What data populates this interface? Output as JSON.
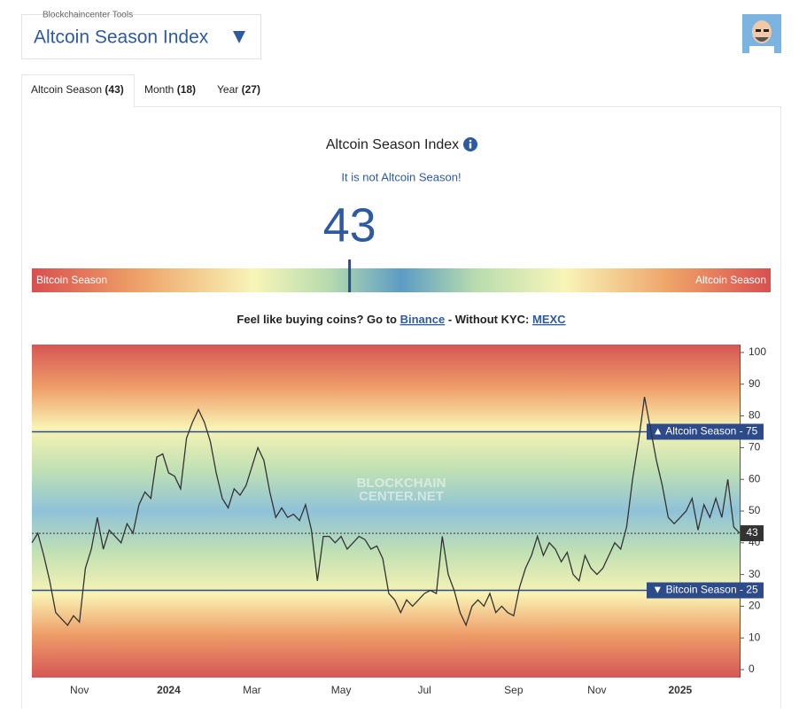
{
  "header": {
    "tools_label": "Blockchaincenter Tools",
    "title": "Altcoin Season Index"
  },
  "tabs": [
    {
      "label": "Altcoin Season",
      "count": "(43)"
    },
    {
      "label": "Month",
      "count": "(18)"
    },
    {
      "label": "Year",
      "count": "(27)"
    }
  ],
  "gauge": {
    "title": "Altcoin Season Index",
    "status": "It is not Altcoin Season!",
    "value": 43,
    "left_label": "Bitcoin Season",
    "right_label": "Altcoin Season"
  },
  "promo": {
    "lead": "Feel like buying coins? Go to",
    "link1": "Binance",
    "middle": "- Without KYC:",
    "link2": "MEXC"
  },
  "line_chart": {
    "type": "line",
    "watermark": [
      "BLOCKCHAIN",
      "CENTER.NET"
    ],
    "color": "#333333",
    "categories": [
      null,
      null,
      null,
      null,
      null,
      null,
      null,
      null,
      "Nov",
      null,
      null,
      null,
      null,
      null,
      null,
      null,
      null,
      null,
      null,
      null,
      null,
      null,
      null,
      "2024",
      null,
      null,
      null,
      null,
      null,
      null,
      null,
      null,
      null,
      null,
      null,
      null,
      null,
      "Mar",
      null,
      null,
      null,
      null,
      null,
      null,
      null,
      null,
      null,
      null,
      null,
      null,
      null,
      null,
      "May",
      null,
      null,
      null,
      null,
      null,
      null,
      null,
      null,
      null,
      null,
      null,
      null,
      null,
      "Jul",
      null,
      null,
      null,
      null,
      null,
      null,
      null,
      null,
      null,
      null,
      null,
      null,
      null,
      null,
      "Sep",
      null,
      null,
      null,
      null,
      null,
      null,
      null,
      null,
      null,
      null,
      null,
      null,
      null,
      "Nov",
      null,
      null,
      null,
      null,
      null,
      null,
      null,
      null,
      null,
      null,
      null,
      null,
      null,
      "2025",
      null,
      null,
      null,
      null,
      null,
      null,
      null,
      null,
      null,
      null
    ],
    "values": [
      40,
      43,
      36,
      28,
      18,
      16,
      14,
      17,
      15,
      32,
      38,
      48,
      38,
      44,
      42,
      40,
      46,
      43,
      52,
      56,
      54,
      67,
      68,
      62,
      61,
      57,
      73,
      78,
      82,
      78,
      72,
      62,
      54,
      51,
      57,
      55,
      58,
      64,
      70,
      66,
      56,
      48,
      51,
      48,
      49,
      47,
      52,
      44,
      28,
      42,
      42,
      40,
      42,
      38,
      40,
      42,
      41,
      38,
      39,
      35,
      24,
      22,
      18,
      22,
      20,
      22,
      24,
      25,
      24,
      42,
      30,
      25,
      18,
      14,
      20,
      22,
      20,
      24,
      18,
      20,
      18,
      17,
      26,
      32,
      36,
      42,
      36,
      40,
      38,
      34,
      37,
      30,
      28,
      36,
      32,
      30,
      32,
      36,
      40,
      38,
      45,
      60,
      72,
      86,
      76,
      66,
      58,
      48,
      46,
      48,
      50,
      54,
      44,
      52,
      48,
      54,
      48,
      60,
      45,
      43
    ],
    "ylim": [
      -2.5,
      102.5
    ],
    "yticks": [
      0,
      10,
      20,
      30,
      40,
      50,
      60,
      70,
      80,
      90,
      100
    ],
    "reference_lines": [
      {
        "value": 75,
        "label": "▲ Altcoin Season - 75"
      },
      {
        "value": 25,
        "label": "▼ Bitcoin Season - 25"
      }
    ],
    "current": {
      "value": 43
    }
  }
}
